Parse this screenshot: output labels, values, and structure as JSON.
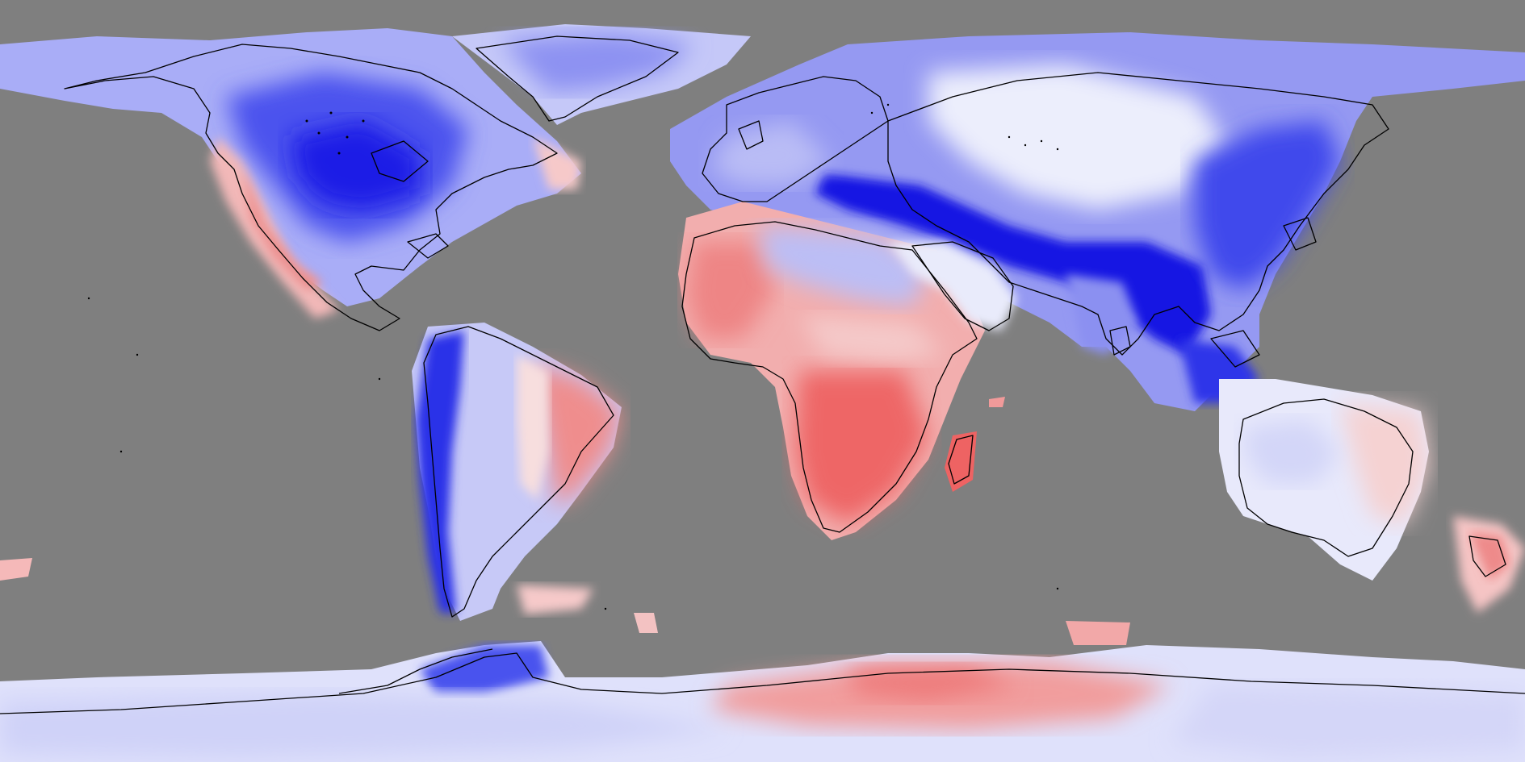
{
  "map": {
    "projection": "equirectangular",
    "extent": {
      "lon": [
        -180,
        180
      ],
      "lat": [
        -90,
        90
      ]
    },
    "ocean_color": "#7f7f7f",
    "coastline_color": "#000000",
    "color_scale": {
      "low": "#0000ff",
      "mid": "#ffffff",
      "high": "#ff3c3c"
    }
  }
}
